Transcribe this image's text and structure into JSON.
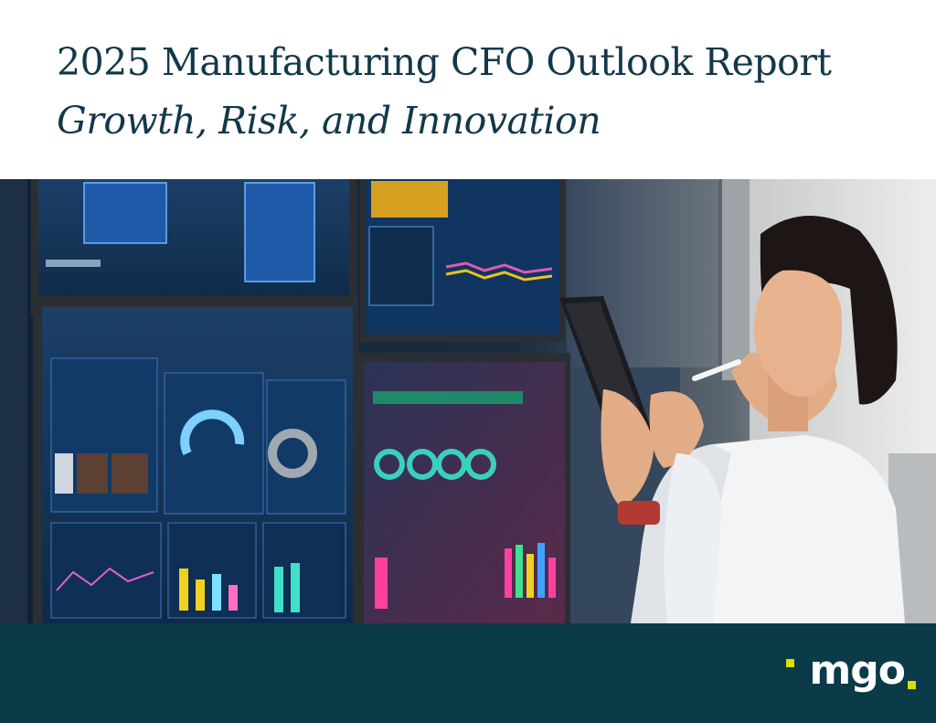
{
  "document": {
    "title": "2025 Manufacturing CFO Outlook Report",
    "subtitle": "Growth, Risk, and Innovation"
  },
  "hero_image": {
    "description_icon": "photo-icon"
  },
  "footer": {
    "logo_text": "MGO",
    "logo_display": "mgo",
    "brand_color": "#0b3a48",
    "accent_color": "#d7e000"
  },
  "colors": {
    "title_text": "#12384a",
    "background": "#ffffff"
  }
}
